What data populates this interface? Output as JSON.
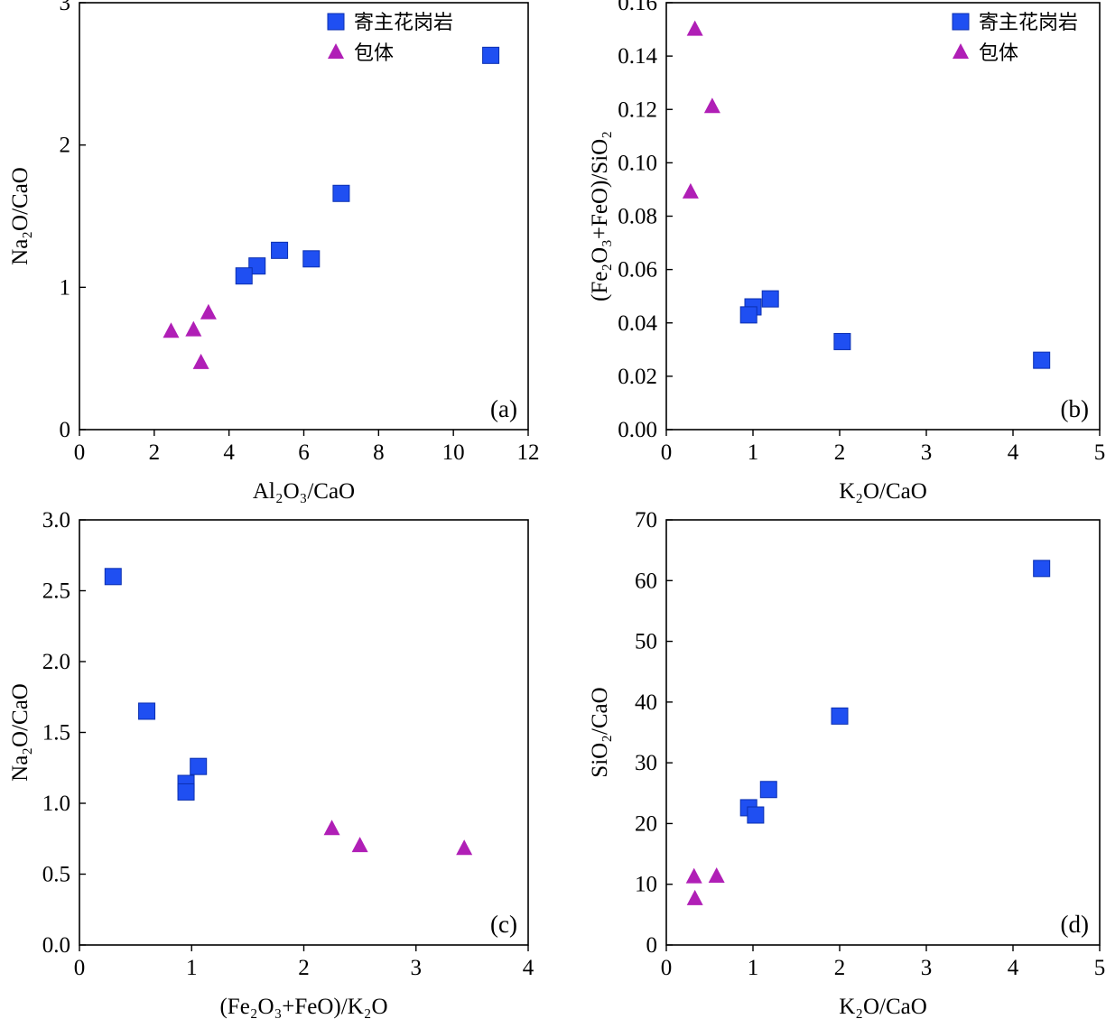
{
  "colors": {
    "granite": "#1f4ff2",
    "granite_stroke": "#0b2fb0",
    "enclave": "#b01fb6"
  },
  "legend": {
    "granite": "寄主花岗岩",
    "enclave": "包体"
  },
  "chart_data": [
    {
      "id": "a",
      "type": "scatter",
      "panel_label": "(a)",
      "xlabel": "Al₂O₃/CaO",
      "ylabel": "Na₂O/CaO",
      "xlim": [
        0,
        12
      ],
      "ylim": [
        0,
        3
      ],
      "xticks": [
        0,
        2,
        4,
        6,
        8,
        10,
        12
      ],
      "yticks": [
        0,
        1,
        2,
        3
      ],
      "xtick_labels": [
        "0",
        "2",
        "4",
        "6",
        "8",
        "10",
        "12"
      ],
      "ytick_labels": [
        "0",
        "1",
        "2",
        "3"
      ],
      "legend": true,
      "series": [
        {
          "name": "寄主花岗岩",
          "marker": "square",
          "x": [
            11.0,
            7.0,
            5.35,
            4.75,
            4.4,
            6.2
          ],
          "y": [
            2.63,
            1.66,
            1.26,
            1.15,
            1.08,
            1.2
          ]
        },
        {
          "name": "包体",
          "marker": "triangle",
          "x": [
            2.45,
            3.05,
            3.45,
            3.25
          ],
          "y": [
            0.69,
            0.7,
            0.82,
            0.47
          ]
        }
      ]
    },
    {
      "id": "b",
      "type": "scatter",
      "panel_label": "(b)",
      "xlabel": "K₂O/CaO",
      "ylabel": "(Fe₂O₃+FeO)/SiO₂",
      "xlim": [
        0,
        5
      ],
      "ylim": [
        0,
        0.16
      ],
      "xticks": [
        0,
        1,
        2,
        3,
        4,
        5
      ],
      "yticks": [
        0,
        0.02,
        0.04,
        0.06,
        0.08,
        0.1,
        0.12,
        0.14,
        0.16
      ],
      "xtick_labels": [
        "0",
        "1",
        "2",
        "3",
        "4",
        "5"
      ],
      "ytick_labels": [
        "0.00",
        "0.02",
        "0.04",
        "0.06",
        "0.08",
        "0.10",
        "0.12",
        "0.14",
        "0.16"
      ],
      "legend": true,
      "series": [
        {
          "name": "寄主花岗岩",
          "marker": "square",
          "x": [
            4.33,
            2.03,
            1.2,
            1.0,
            0.95
          ],
          "y": [
            0.026,
            0.033,
            0.049,
            0.046,
            0.043
          ]
        },
        {
          "name": "包体",
          "marker": "triangle",
          "x": [
            0.33,
            0.53,
            0.28
          ],
          "y": [
            0.15,
            0.121,
            0.089
          ]
        }
      ]
    },
    {
      "id": "c",
      "type": "scatter",
      "panel_label": "(c)",
      "xlabel": "(Fe₂O₃+FeO)/K₂O",
      "ylabel": "Na₂O/CaO",
      "xlim": [
        0,
        4
      ],
      "ylim": [
        0,
        3.0
      ],
      "xticks": [
        0,
        1,
        2,
        3,
        4
      ],
      "yticks": [
        0,
        0.5,
        1.0,
        1.5,
        2.0,
        2.5,
        3.0
      ],
      "xtick_labels": [
        "0",
        "1",
        "2",
        "3",
        "4"
      ],
      "ytick_labels": [
        "0.0",
        "0.5",
        "1.0",
        "1.5",
        "2.0",
        "2.5",
        "3.0"
      ],
      "legend": false,
      "series": [
        {
          "name": "寄主花岗岩",
          "marker": "square",
          "x": [
            0.3,
            0.6,
            0.95,
            0.95,
            1.06
          ],
          "y": [
            2.6,
            1.65,
            1.14,
            1.08,
            1.26
          ]
        },
        {
          "name": "包体",
          "marker": "triangle",
          "x": [
            2.25,
            2.5,
            3.43
          ],
          "y": [
            0.82,
            0.7,
            0.68
          ]
        }
      ]
    },
    {
      "id": "d",
      "type": "scatter",
      "panel_label": "(d)",
      "xlabel": "K₂O/CaO",
      "ylabel": "SiO₂/CaO",
      "xlim": [
        0,
        5
      ],
      "ylim": [
        0,
        70
      ],
      "xticks": [
        0,
        1,
        2,
        3,
        4,
        5
      ],
      "yticks": [
        0,
        10,
        20,
        30,
        40,
        50,
        60,
        70
      ],
      "xtick_labels": [
        "0",
        "1",
        "2",
        "3",
        "4",
        "5"
      ],
      "ytick_labels": [
        "0",
        "10",
        "20",
        "30",
        "40",
        "50",
        "60",
        "70"
      ],
      "legend": false,
      "series": [
        {
          "name": "寄主花岗岩",
          "marker": "square",
          "x": [
            4.33,
            2.0,
            1.18,
            0.95,
            1.03
          ],
          "y": [
            62,
            37.7,
            25.6,
            22.6,
            21.4
          ]
        },
        {
          "name": "包体",
          "marker": "triangle",
          "x": [
            0.32,
            0.58,
            0.33
          ],
          "y": [
            11.2,
            11.3,
            7.6
          ]
        }
      ]
    }
  ]
}
